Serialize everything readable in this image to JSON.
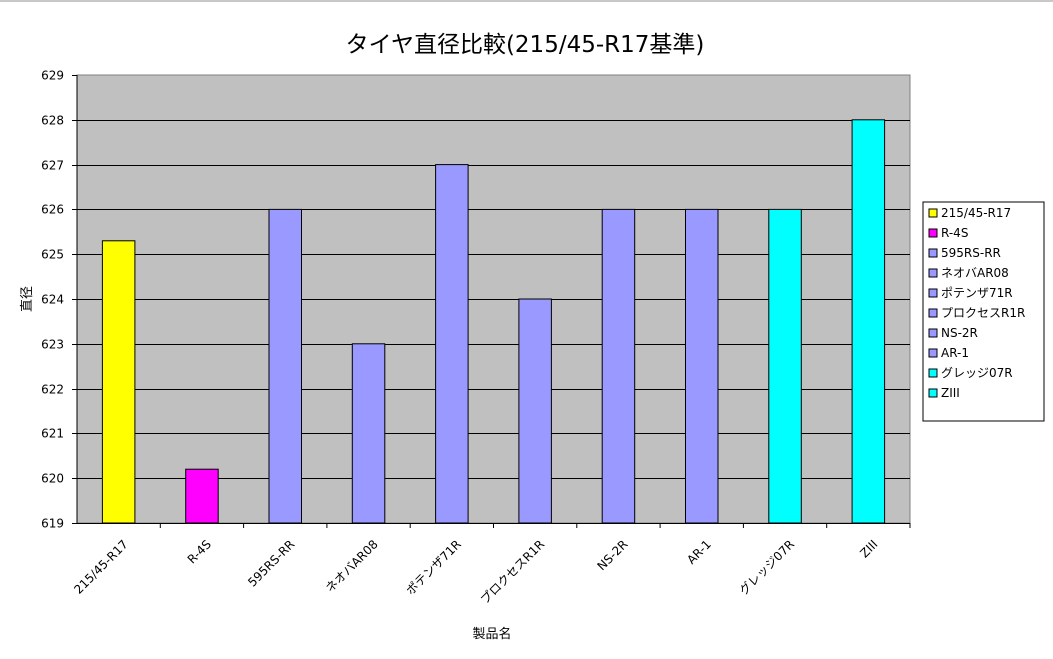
{
  "chart_data": {
    "type": "bar",
    "title": "タイヤ直径比較(215/45-R17基準)",
    "xlabel": "製品名",
    "ylabel": "直径",
    "ylim": [
      619,
      629
    ],
    "ytick_step": 1,
    "grid": true,
    "legend_position": "right",
    "plot_background": "#c0c0c0",
    "categories": [
      "215/45-R17",
      "R-4S",
      "595RS-RR",
      "ネオバAR08",
      "ポテンザ71R",
      "プロクセスR1R",
      "NS-2R",
      "AR-1",
      "グレッジ07R",
      "ZIII"
    ],
    "values": [
      625.3,
      620.2,
      626,
      623,
      627,
      624,
      626,
      626,
      626,
      628
    ],
    "colors": [
      "#ffff00",
      "#ff00ff",
      "#9999ff",
      "#9999ff",
      "#9999ff",
      "#9999ff",
      "#9999ff",
      "#9999ff",
      "#00ffff",
      "#00ffff"
    ],
    "legend": [
      "215/45-R17",
      "R-4S",
      "595RS-RR",
      "ネオバAR08",
      "ポテンザ71R",
      "プロクセスR1R",
      "NS-2R",
      "AR-1",
      "グレッジ07R",
      "ZIII"
    ]
  }
}
